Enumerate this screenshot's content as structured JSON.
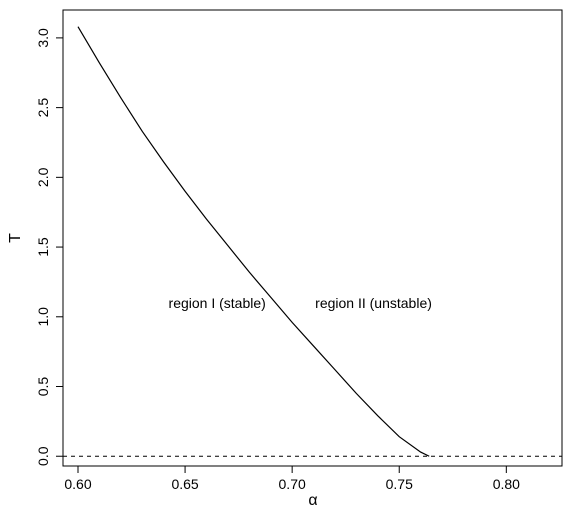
{
  "chart_data": {
    "type": "line",
    "xlabel": "α",
    "ylabel": "T",
    "xlim": [
      0.593,
      0.826
    ],
    "ylim": [
      -0.07,
      3.2
    ],
    "x_ticks": [
      "0.60",
      "0.65",
      "0.70",
      "0.75",
      "0.80"
    ],
    "y_ticks": [
      "0.0",
      "0.5",
      "1.0",
      "1.5",
      "2.0",
      "2.5",
      "3.0"
    ],
    "series": [
      {
        "style": "solid",
        "color": "#000000",
        "points": [
          {
            "x": 0.6,
            "y": 3.08
          },
          {
            "x": 0.61,
            "y": 2.82
          },
          {
            "x": 0.62,
            "y": 2.57
          },
          {
            "x": 0.63,
            "y": 2.33
          },
          {
            "x": 0.64,
            "y": 2.11
          },
          {
            "x": 0.65,
            "y": 1.9
          },
          {
            "x": 0.66,
            "y": 1.7
          },
          {
            "x": 0.67,
            "y": 1.51
          },
          {
            "x": 0.68,
            "y": 1.32
          },
          {
            "x": 0.69,
            "y": 1.14
          },
          {
            "x": 0.7,
            "y": 0.96
          },
          {
            "x": 0.71,
            "y": 0.79
          },
          {
            "x": 0.72,
            "y": 0.62
          },
          {
            "x": 0.73,
            "y": 0.45
          },
          {
            "x": 0.74,
            "y": 0.29
          },
          {
            "x": 0.75,
            "y": 0.14
          },
          {
            "x": 0.76,
            "y": 0.03
          },
          {
            "x": 0.764,
            "y": 0.0
          }
        ]
      }
    ],
    "reference_lines": [
      {
        "orientation": "horizontal",
        "y": 0.0,
        "style": "dashed",
        "color": "#000000"
      }
    ],
    "annotations": [
      {
        "text": "region I (stable)",
        "x": 0.665,
        "y": 1.1
      },
      {
        "text": "region II (unstable)",
        "x": 0.738,
        "y": 1.1
      }
    ],
    "grid": false,
    "legend": "none"
  }
}
